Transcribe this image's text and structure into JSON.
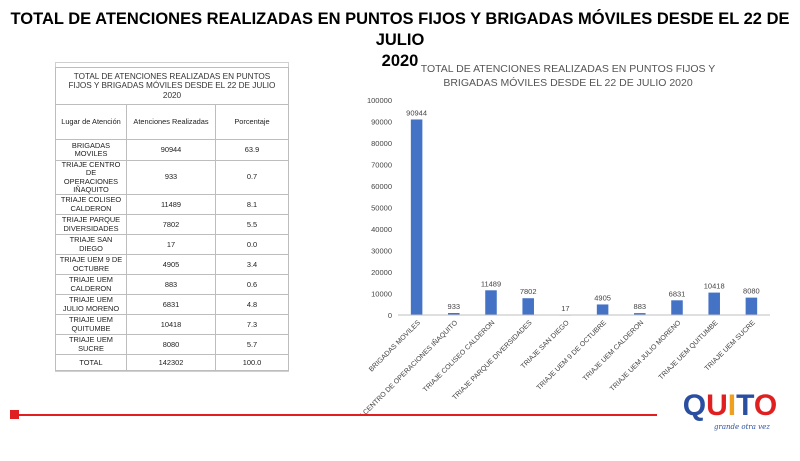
{
  "page": {
    "title_line1": "TOTAL DE ATENCIONES REALIZADAS EN PUNTOS FIJOS Y BRIGADAS MÓVILES DESDE EL 22 DE JULIO",
    "title_line2": "2020"
  },
  "table": {
    "caption_line1": "TOTAL DE ATENCIONES REALIZADAS  EN PUNTOS",
    "caption_line2": "FIJOS Y BRIGADAS MÓVILES  DESDE EL 22 DE JULIO",
    "caption_line3": "2020",
    "headers": [
      "Lugar de Atención",
      "Atenciones Realizadas",
      "Porcentaje"
    ],
    "rows": [
      {
        "lines": [
          "BRIGADAS",
          "MOVILES"
        ],
        "value": "90944",
        "pct": "63.9"
      },
      {
        "lines": [
          "TRIAJE CENTRO",
          "DE",
          "OPERACIONES",
          "IÑAQUITO"
        ],
        "value": "933",
        "pct": "0.7"
      },
      {
        "lines": [
          "TRIAJE COLISEO",
          "CALDERON"
        ],
        "value": "11489",
        "pct": "8.1"
      },
      {
        "lines": [
          "TRIAJE PARQUE",
          "DIVERSIDADES"
        ],
        "value": "7802",
        "pct": "5.5"
      },
      {
        "lines": [
          "TRIAJE SAN",
          "DIEGO"
        ],
        "value": "17",
        "pct": "0.0"
      },
      {
        "lines": [
          "TRIAJE UEM 9 DE",
          "OCTUBRE"
        ],
        "value": "4905",
        "pct": "3.4"
      },
      {
        "lines": [
          "TRIAJE UEM",
          "CALDERON"
        ],
        "value": "883",
        "pct": "0.6"
      },
      {
        "lines": [
          "TRIAJE UEM",
          "JULIO MORENO"
        ],
        "value": "6831",
        "pct": "4.8"
      },
      {
        "lines": [
          "TRIAJE UEM",
          "QUITUMBE"
        ],
        "value": "10418",
        "pct": "7.3"
      },
      {
        "lines": [
          "TRIAJE UEM",
          "SUCRE"
        ],
        "value": "8080",
        "pct": "5.7"
      }
    ],
    "total": {
      "label": "TOTAL",
      "value": "142302",
      "pct": "100.0"
    }
  },
  "chart_data": {
    "type": "bar",
    "title_line1": "TOTAL DE ATENCIONES REALIZADAS EN PUNTOS FIJOS Y",
    "title_line2": "BRIGADAS MÓVILES DESDE EL 22 DE JULIO 2020",
    "categories": [
      "BRIGADAS MOVILES",
      "TRIAJE CENTRO DE OPERACIONES IÑAQUITO",
      "TRIAJE COLISEO CALDERON",
      "TRIAJE PARQUE DIVERSIDADES",
      "TRIAJE SAN DIEGO",
      "TRIAJE UEM 9 DE OCTUBRE",
      "TRIAJE UEM CALDERON",
      "TRIAJE UEM JULIO MORENO",
      "TRIAJE UEM QUITUMBE",
      "TRIAJE UEM SUCRE"
    ],
    "values": [
      90944,
      933,
      11489,
      7802,
      17,
      4905,
      883,
      6831,
      10418,
      8080
    ],
    "ylim": [
      0,
      100000
    ],
    "yticks": [
      0,
      10000,
      20000,
      30000,
      40000,
      50000,
      60000,
      70000,
      80000,
      90000,
      100000
    ],
    "grid": false,
    "bar_color": "#4472c4",
    "data_labels": true
  },
  "footer": {
    "accent_color": "#e02020",
    "logo_text": "QUITO",
    "logo_tagline": "grande otra vez"
  }
}
